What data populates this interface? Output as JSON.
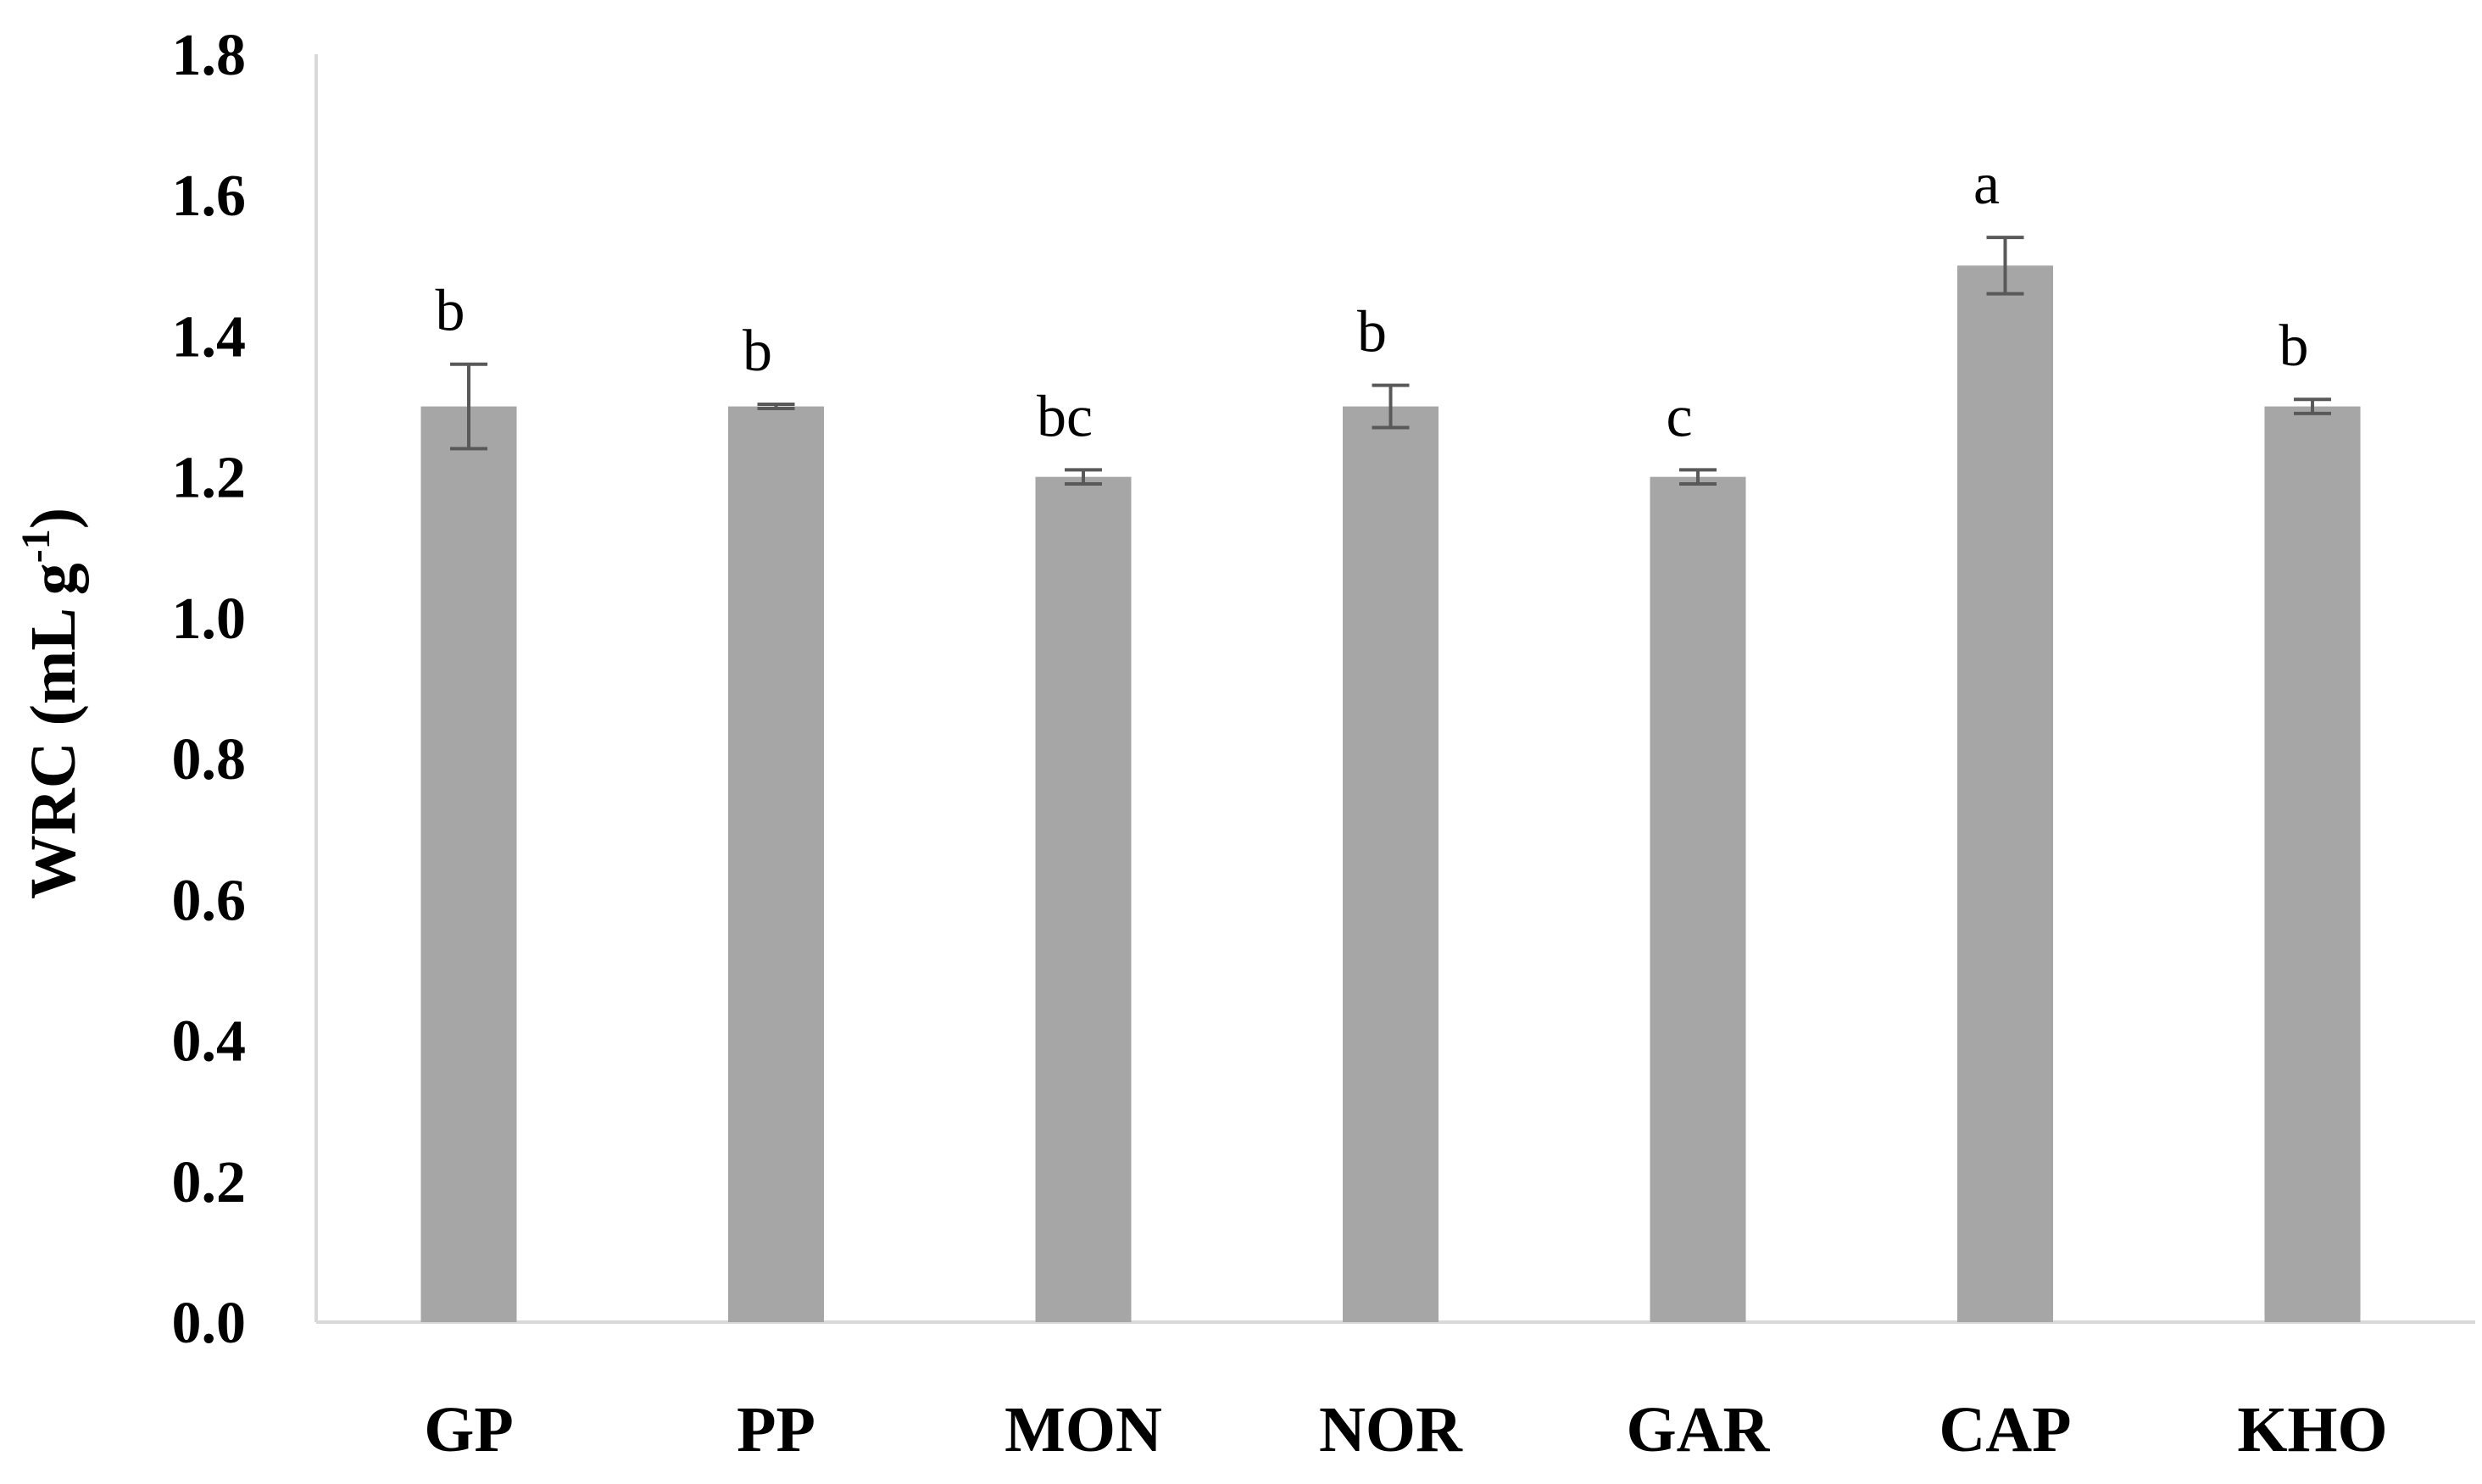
{
  "chart_data": {
    "type": "bar",
    "title": "",
    "xlabel": "",
    "ylabel": {
      "prefix": "WRC (mL g",
      "superscript": "-1",
      "suffix": ")"
    },
    "ylim": [
      0.0,
      1.8
    ],
    "yticks": [
      "0.0",
      "0.2",
      "0.4",
      "0.6",
      "0.8",
      "1.0",
      "1.2",
      "1.4",
      "1.6",
      "1.8"
    ],
    "grid": false,
    "legend": "none",
    "categories": [
      "GP",
      "PP",
      "MON",
      "NOR",
      "GAR",
      "CAP",
      "KHO"
    ],
    "values": [
      1.3,
      1.3,
      1.2,
      1.3,
      1.2,
      1.5,
      1.3
    ],
    "errors": [
      0.06,
      0.003,
      0.01,
      0.03,
      0.01,
      0.04,
      0.01
    ],
    "significance_letters": [
      "b",
      "b",
      "bc",
      "b",
      "c",
      "a",
      "b"
    ],
    "colors": {
      "bar": "#a6a6a6",
      "axis": "#d9d9d9",
      "error_bar": "#595959"
    }
  }
}
